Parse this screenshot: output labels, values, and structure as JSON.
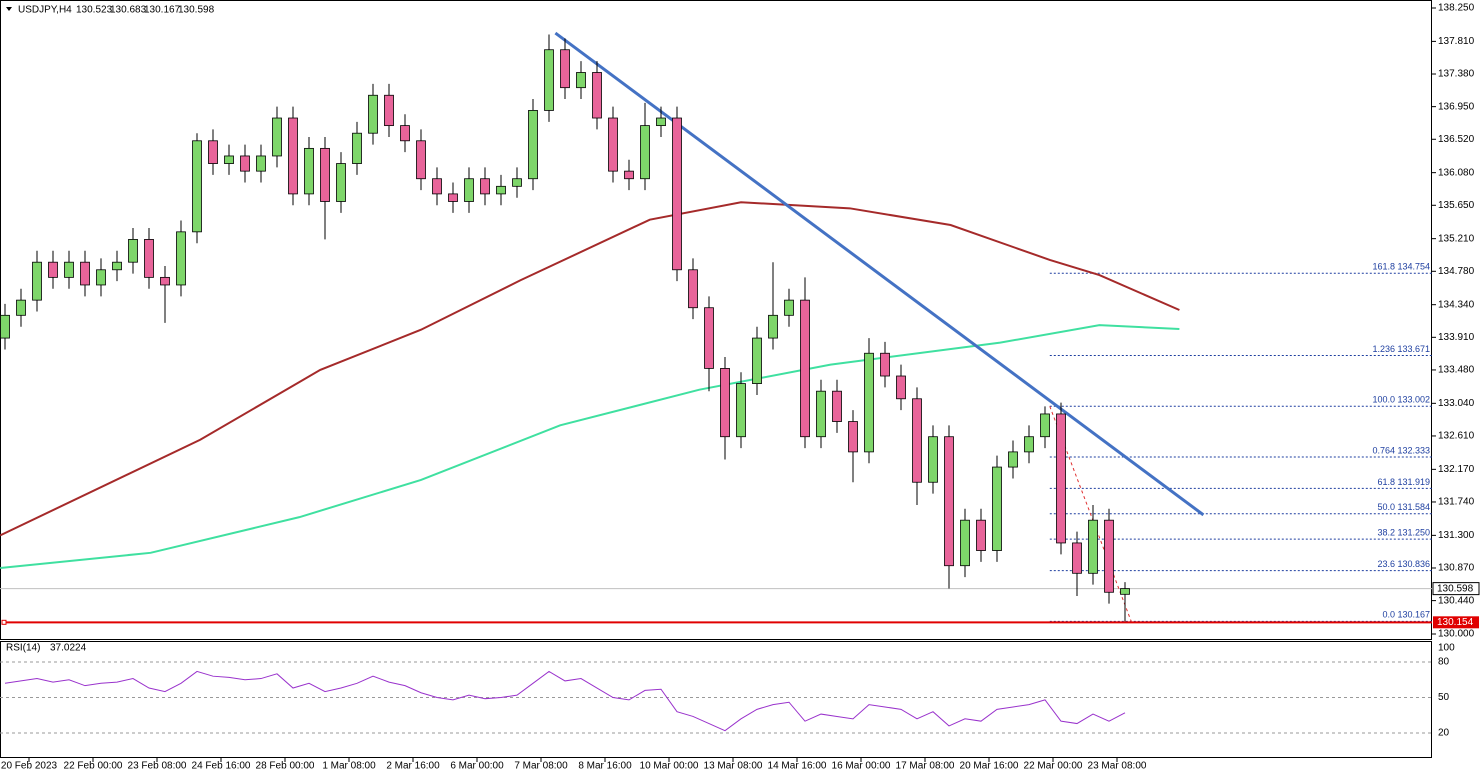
{
  "chart_data": [
    {
      "type": "candlestick",
      "title": "USDJPY,H4",
      "up_color": "#7ed66a",
      "down_color": "#e8649a",
      "open": [
        133.9,
        134.2,
        134.4,
        134.9,
        134.7,
        134.9,
        134.6,
        134.8,
        134.9,
        135.2,
        134.7,
        134.6,
        135.3,
        136.5,
        136.2,
        136.3,
        136.1,
        136.3,
        136.8,
        135.8,
        136.4,
        135.7,
        136.2,
        136.6,
        137.1,
        136.7,
        136.5,
        136.0,
        135.8,
        135.7,
        136.0,
        135.8,
        135.9,
        136.0,
        136.9,
        137.7,
        137.2,
        137.4,
        136.8,
        136.1,
        136.0,
        136.7,
        136.8,
        134.8,
        134.3,
        133.5,
        132.6,
        133.3,
        133.9,
        134.2,
        134.4,
        132.6,
        133.2,
        132.8,
        132.4,
        133.7,
        133.4,
        133.1,
        132.0,
        132.6,
        130.9,
        131.5,
        131.1,
        132.2,
        132.4,
        132.6,
        132.9,
        131.2,
        130.8,
        131.5,
        130.523
      ],
      "high": [
        134.35,
        134.55,
        135.05,
        135.05,
        135.05,
        135.05,
        134.95,
        135.05,
        135.35,
        135.35,
        134.85,
        135.45,
        136.6,
        136.65,
        136.45,
        136.45,
        136.45,
        136.95,
        136.95,
        136.55,
        136.55,
        136.35,
        136.75,
        137.25,
        137.25,
        136.85,
        136.65,
        136.15,
        135.95,
        136.15,
        136.15,
        136.05,
        136.15,
        137.05,
        137.9,
        137.85,
        137.55,
        137.55,
        136.95,
        136.25,
        137.0,
        136.95,
        136.95,
        134.95,
        134.45,
        133.65,
        133.45,
        134.05,
        134.9,
        134.55,
        134.7,
        133.35,
        133.35,
        132.95,
        133.9,
        133.85,
        133.55,
        133.25,
        132.75,
        132.75,
        131.65,
        131.65,
        132.35,
        132.55,
        132.75,
        133.0,
        133.05,
        131.35,
        131.7,
        131.65,
        130.683
      ],
      "low": [
        133.75,
        134.05,
        134.25,
        134.55,
        134.55,
        134.45,
        134.45,
        134.65,
        134.75,
        134.55,
        134.1,
        134.45,
        135.15,
        136.05,
        136.05,
        135.95,
        135.95,
        136.15,
        135.65,
        135.65,
        135.2,
        135.55,
        136.05,
        136.45,
        136.55,
        136.35,
        135.85,
        135.65,
        135.55,
        135.55,
        135.65,
        135.65,
        135.75,
        135.85,
        136.75,
        137.05,
        137.05,
        136.65,
        135.95,
        135.85,
        135.85,
        136.55,
        134.65,
        134.15,
        133.2,
        132.3,
        132.45,
        133.15,
        133.75,
        134.05,
        132.45,
        132.45,
        132.65,
        132.0,
        132.25,
        133.25,
        132.95,
        131.7,
        131.85,
        130.6,
        130.75,
        130.95,
        130.95,
        132.05,
        132.25,
        132.45,
        131.05,
        130.5,
        130.65,
        130.4,
        130.167
      ],
      "close": [
        134.2,
        134.4,
        134.9,
        134.7,
        134.9,
        134.6,
        134.8,
        134.9,
        135.2,
        134.7,
        134.6,
        135.3,
        136.5,
        136.2,
        136.3,
        136.1,
        136.3,
        136.8,
        135.8,
        136.4,
        135.7,
        136.2,
        136.6,
        137.1,
        136.7,
        136.5,
        136.0,
        135.8,
        135.7,
        136.0,
        135.8,
        135.9,
        136.0,
        136.9,
        137.7,
        137.2,
        137.4,
        136.8,
        136.1,
        136.0,
        136.7,
        136.8,
        134.8,
        134.3,
        133.5,
        132.6,
        133.3,
        133.9,
        134.2,
        134.4,
        132.6,
        133.2,
        132.8,
        132.4,
        133.7,
        133.4,
        133.1,
        132.0,
        132.6,
        130.9,
        131.5,
        131.1,
        132.2,
        132.4,
        132.6,
        132.9,
        131.2,
        130.8,
        131.5,
        130.55,
        130.598
      ],
      "overlays": [
        {
          "color": "#a52a2a",
          "width": 2,
          "x": [
            -0.3,
            12.2,
            19.7,
            26,
            32.2,
            40.3,
            46,
            52.8,
            59.1,
            65.3,
            68.4,
            73.4
          ],
          "values": [
            131.3,
            132.56,
            133.48,
            134.01,
            134.66,
            135.46,
            135.69,
            135.61,
            135.39,
            134.93,
            134.73,
            134.27
          ]
        },
        {
          "color": "#3fe0a0",
          "width": 2,
          "x": [
            -0.3,
            9.1,
            18.4,
            26,
            34.7,
            43.4,
            51.6,
            62.2,
            68.4,
            73.4
          ],
          "values": [
            130.87,
            131.07,
            131.54,
            132.03,
            132.75,
            133.22,
            133.55,
            133.84,
            134.07,
            134.02
          ]
        },
        {
          "color": "#4472c4",
          "width": 3,
          "x": [
            34.4,
            74.9
          ],
          "values": [
            137.92,
            131.57
          ]
        },
        {
          "color": "#e03030",
          "width": 1,
          "dash": true,
          "x": [
            65.3,
            70.4
          ],
          "values": [
            133.0,
            130.16
          ]
        }
      ],
      "fib_levels": [
        {
          "value": 134.754,
          "label": "161.8 134.754"
        },
        {
          "value": 133.671,
          "label": "1.236 133.671"
        },
        {
          "value": 133.002,
          "label": "100.0 133.002"
        },
        {
          "value": 132.333,
          "label": "0.764 132.333"
        },
        {
          "value": 131.919,
          "label": "61.8 131.919"
        },
        {
          "value": 131.584,
          "label": "50.0 131.584"
        },
        {
          "value": 131.25,
          "label": "38.2 131.250"
        },
        {
          "value": 130.836,
          "label": "23.6 130.836"
        },
        {
          "value": 130.167,
          "label": "0.0 130.167"
        }
      ],
      "hline": 130.154,
      "hline_color": "#e00000",
      "ylim": [
        130.0,
        138.25
      ],
      "yticks": [
        {
          "value": 138.25,
          "label": "138.250"
        },
        {
          "value": 137.81,
          "label": "137.810"
        },
        {
          "value": 137.38,
          "label": "137.380"
        },
        {
          "value": 136.95,
          "label": "136.950"
        },
        {
          "value": 136.52,
          "label": "136.520"
        },
        {
          "value": 136.08,
          "label": "136.080"
        },
        {
          "value": 135.65,
          "label": "135.650"
        },
        {
          "value": 135.21,
          "label": "135.210"
        },
        {
          "value": 134.78,
          "label": "134.780"
        },
        {
          "value": 134.34,
          "label": "134.340"
        },
        {
          "value": 133.91,
          "label": "133.910"
        },
        {
          "value": 133.48,
          "label": "133.480"
        },
        {
          "value": 133.04,
          "label": "133.040"
        },
        {
          "value": 132.61,
          "label": "132.610"
        },
        {
          "value": 132.17,
          "label": "132.170"
        },
        {
          "value": 131.74,
          "label": "131.740"
        },
        {
          "value": 131.3,
          "label": "131.300"
        },
        {
          "value": 130.87,
          "label": "130.870"
        },
        {
          "value": 130.44,
          "label": "130.440"
        },
        {
          "value": 130.0,
          "label": "130.000"
        }
      ],
      "xticks": [
        {
          "value": 1.5,
          "label": "20 Feb 2023"
        },
        {
          "value": 5.5,
          "label": "22 Feb 00:00"
        },
        {
          "value": 9.5,
          "label": "23 Feb 08:00"
        },
        {
          "value": 13.5,
          "label": "24 Feb 16:00"
        },
        {
          "value": 17.5,
          "label": "28 Feb 00:00"
        },
        {
          "value": 21.5,
          "label": "1 Mar 08:00"
        },
        {
          "value": 25.5,
          "label": "2 Mar 16:00"
        },
        {
          "value": 29.5,
          "label": "6 Mar 00:00"
        },
        {
          "value": 33.5,
          "label": "7 Mar 08:00"
        },
        {
          "value": 37.5,
          "label": "8 Mar 16:00"
        },
        {
          "value": 41.5,
          "label": "10 Mar 00:00"
        },
        {
          "value": 45.5,
          "label": "13 Mar 08:00"
        },
        {
          "value": 49.5,
          "label": "14 Mar 16:00"
        },
        {
          "value": 53.5,
          "label": "16 Mar 00:00"
        },
        {
          "value": 57.5,
          "label": "17 Mar 08:00"
        },
        {
          "value": 61.5,
          "label": "20 Mar 16:00"
        },
        {
          "value": 65.5,
          "label": "22 Mar 00:00"
        },
        {
          "value": 69.5,
          "label": "23 Mar 08:00"
        }
      ]
    },
    {
      "type": "line",
      "title": "RSI(14)",
      "color": "#9932cc",
      "values": [
        62,
        64,
        66,
        63,
        65,
        60,
        62,
        63,
        66,
        58,
        55,
        62,
        72,
        68,
        67,
        65,
        66,
        70,
        58,
        62,
        55,
        58,
        62,
        68,
        63,
        60,
        54,
        50,
        48,
        52,
        49,
        50,
        52,
        62,
        72,
        64,
        66,
        58,
        50,
        48,
        56,
        57,
        38,
        34,
        28,
        22,
        32,
        40,
        44,
        46,
        30,
        36,
        34,
        32,
        44,
        42,
        40,
        32,
        38,
        26,
        32,
        30,
        40,
        42,
        44,
        48,
        30,
        28,
        36,
        30,
        37.0224
      ],
      "ylim": [
        0,
        100
      ],
      "yticks": [
        100,
        80,
        50,
        20
      ]
    }
  ]
}
